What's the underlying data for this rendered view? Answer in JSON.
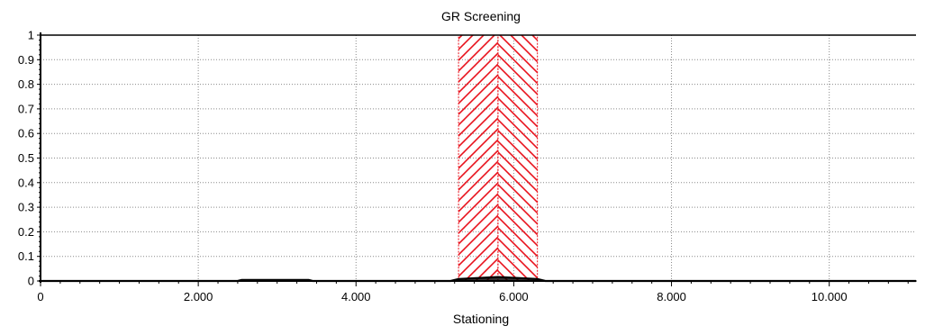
{
  "chart_data": {
    "type": "area",
    "title": "GR Screening",
    "xlabel": "Stationing",
    "ylabel": "",
    "xlim": [
      0,
      11100
    ],
    "ylim": [
      0,
      1
    ],
    "grid": true,
    "legend": "none",
    "x_ticks": [
      0,
      2000,
      4000,
      6000,
      8000,
      10000
    ],
    "x_tick_labels": [
      "0",
      "2.000",
      "4.000",
      "6.000",
      "8.000",
      "10.000"
    ],
    "y_ticks": [
      0,
      0.1,
      0.2,
      0.3,
      0.4,
      0.5,
      0.6,
      0.7,
      0.8,
      0.9,
      1
    ],
    "y_tick_labels": [
      "0",
      "0.1",
      "0.2",
      "0.3",
      "0.4",
      "0.5",
      "0.6",
      "0.7",
      "0.8",
      "0.9",
      "1"
    ],
    "highlight_regions": [
      {
        "x_start": 5300,
        "x_end": 5800,
        "y_top": 1,
        "hatch": "forward"
      },
      {
        "x_start": 5800,
        "x_end": 6300,
        "y_top": 1,
        "hatch": "backward"
      }
    ],
    "series": [
      {
        "x": [
          0,
          2500,
          2550,
          3400,
          3450,
          5200,
          5300,
          5800,
          6300,
          6400,
          11100
        ],
        "values": [
          0,
          0,
          0.004,
          0.004,
          0,
          0,
          0.008,
          0.016,
          0.008,
          0,
          0
        ]
      }
    ],
    "colors": {
      "hatch": "#e8121c",
      "series": "#000000",
      "grid": "#8a8a8a",
      "axis": "#000000"
    }
  }
}
